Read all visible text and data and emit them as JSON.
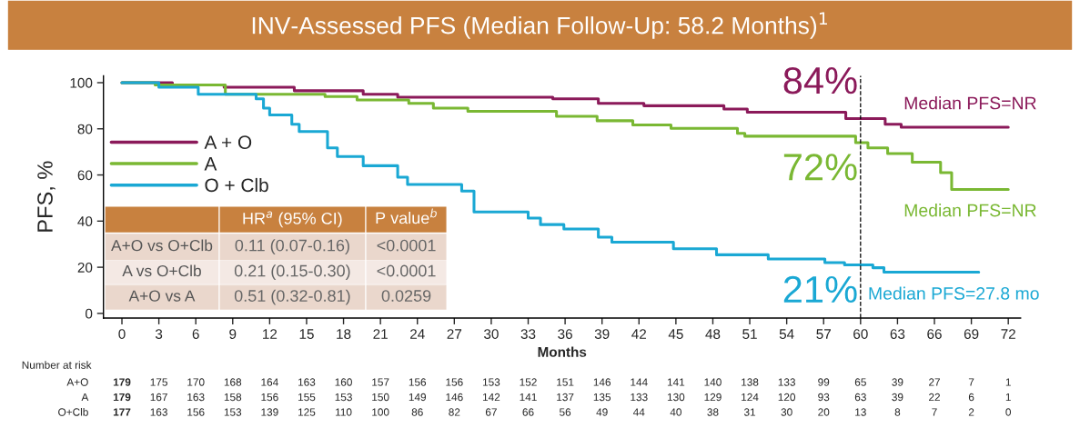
{
  "chart_data": {
    "type": "step",
    "title": "INV-Assessed PFS (Median Follow-Up: 58.2 Months)$^{1}$",
    "xlabel": "Months",
    "ylabel": "PFS, %",
    "xlim": [
      -1.5,
      73
    ],
    "ylim": [
      -2,
      103
    ],
    "xticks": [
      0,
      3,
      6,
      9,
      12,
      15,
      18,
      21,
      24,
      27,
      30,
      33,
      36,
      39,
      42,
      45,
      48,
      51,
      54,
      57,
      60,
      63,
      66,
      69,
      72
    ],
    "yticks": [
      0,
      20,
      40,
      60,
      80,
      100
    ],
    "grid": false,
    "legend": "left",
    "line_style": "solid",
    "marker": "none",
    "series": [
      {
        "name": "A + O",
        "color": "#8b1a5a",
        "x": [
          0,
          4.1,
          8.3,
          14,
          19.6,
          22.4,
          35,
          38.7,
          42.4,
          48.9,
          50.8,
          58.8,
          62,
          63.3,
          72
        ],
        "values": [
          100,
          99,
          98,
          96.5,
          95,
          93.7,
          93,
          91,
          90,
          88.6,
          87.2,
          84.4,
          82,
          80.7,
          80.7
        ]
      },
      {
        "name": "A",
        "color": "#7ab833",
        "x": [
          0,
          2.7,
          8.4,
          16.5,
          19.1,
          23.3,
          25.3,
          28.1,
          35.3,
          38.6,
          41.5,
          44.6,
          50,
          50.6,
          59.6,
          60.6,
          62.2,
          64.2,
          66.5,
          67.4,
          72
        ],
        "values": [
          100,
          99,
          95,
          94,
          92.5,
          91,
          89,
          87.6,
          85.4,
          83.5,
          81.7,
          80.2,
          78,
          76.8,
          74,
          71.7,
          69.3,
          65.5,
          61,
          53.7,
          53.7
        ]
      },
      {
        "name": "O + Clb",
        "color": "#1aa8d4",
        "x": [
          0,
          3,
          6.2,
          10.9,
          11.5,
          12,
          13.8,
          14.4,
          16.7,
          17.5,
          19.6,
          22.4,
          23.2,
          27.6,
          28.6,
          33,
          34,
          35.9,
          38.7,
          39.8,
          44.8,
          48.3,
          52.5,
          57.1,
          58.7,
          61,
          61.9,
          69.6
        ],
        "values": [
          100,
          98,
          95,
          93,
          89,
          86,
          82,
          78.8,
          71.7,
          68,
          64,
          59,
          55.9,
          53,
          44,
          41.3,
          38.5,
          36.6,
          33,
          30.9,
          28,
          25.4,
          23.6,
          22,
          21,
          19.8,
          17.9,
          17.9
        ]
      }
    ],
    "ref_lines": [
      {
        "axis": "x",
        "value": 60,
        "color": "#000000",
        "line_style": "dashed"
      }
    ],
    "annotations": [
      "84%",
      "72%",
      "21%",
      "Median PFS=NR",
      "Median PFS=NR",
      "Median PFS=27.8 mo",
      "HR$^{a}$ (95% CI)",
      "P value$^{b}$",
      "A+O vs O+Clb",
      "0.11 (0.07-0.16)",
      "<0.0001",
      "A vs O+Clb",
      "0.21 (0.15-0.30)",
      "<0.0001",
      "A+O vs A",
      "0.51 (0.32-0.81)",
      "0.0259",
      "Number at risk",
      "A+O",
      "A",
      "O+Clb",
      "179 175 170 168 164 163 160 157 156 156 153 152 151 146 144 141 140 138 133 99 65 39 27 7 1",
      "179 167 163 158 156 155 153 150 149 146 142 141 137 135 133 130 129 124 120 93 63 39 22 6 1",
      "177 163 156 153 139 125 110 100 86 82 67 66 56 49 44 40 38 31 30 20 13 8 7 2 0"
    ]
  }
}
